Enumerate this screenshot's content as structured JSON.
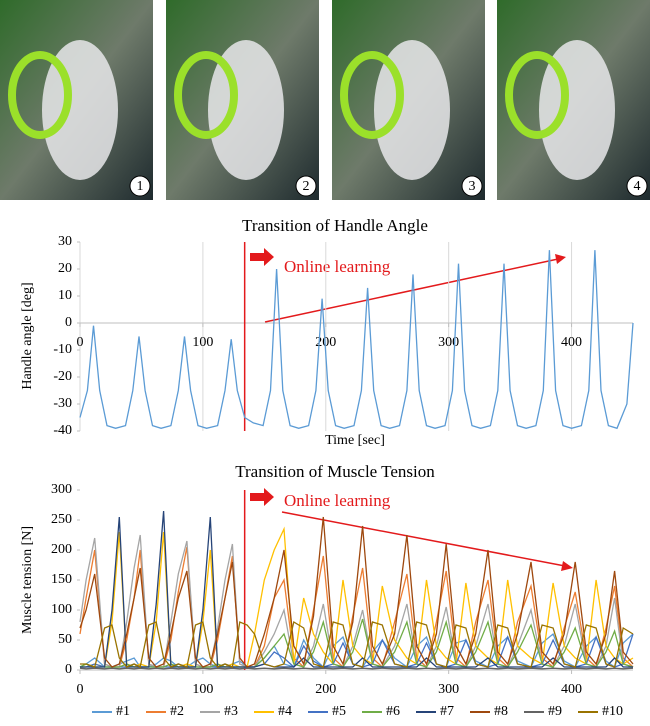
{
  "photos": {
    "labels": [
      "1",
      "2",
      "3",
      "4"
    ]
  },
  "chart_data": [
    {
      "type": "line",
      "title": "Transition of Handle Angle",
      "xlabel": "Time [sec]",
      "ylabel": "Handle angle [deg]",
      "annotation": "Online learning",
      "vline_x": 134,
      "color": "#5b9bd5",
      "line_color": "#e31a1c",
      "xlim": [
        0,
        450
      ],
      "ylim": [
        -40,
        30
      ],
      "xticks": [
        0,
        100,
        200,
        300,
        400
      ],
      "yticks": [
        -40,
        -30,
        -20,
        -10,
        0,
        10,
        20,
        30
      ],
      "xgrid": true,
      "x": [
        0,
        6,
        11,
        16,
        22,
        29,
        37,
        43,
        48,
        53,
        59,
        66,
        74,
        80,
        85,
        90,
        96,
        103,
        112,
        118,
        123,
        128,
        134,
        141,
        149,
        155,
        160,
        165,
        171,
        178,
        186,
        192,
        197,
        202,
        208,
        215,
        223,
        229,
        234,
        239,
        245,
        252,
        260,
        266,
        271,
        276,
        282,
        289,
        297,
        303,
        308,
        313,
        319,
        326,
        334,
        340,
        345,
        350,
        356,
        363,
        371,
        377,
        382,
        387,
        393,
        400,
        408,
        414,
        419,
        424,
        430,
        437,
        445,
        450
      ],
      "values": [
        -35,
        -25,
        -1,
        -25,
        -38,
        -39,
        -38,
        -25,
        -5,
        -25,
        -38,
        -39,
        -38,
        -25,
        -5,
        -25,
        -38,
        -39,
        -38,
        -25,
        -6,
        -25,
        -35,
        -37,
        -38,
        -25,
        20,
        -25,
        -38,
        -39,
        -38,
        -25,
        9,
        -25,
        -38,
        -39,
        -38,
        -25,
        13,
        -25,
        -38,
        -39,
        -38,
        -25,
        18,
        -25,
        -38,
        -39,
        -38,
        -25,
        22,
        -25,
        -38,
        -39,
        -38,
        -25,
        22,
        -25,
        -38,
        -39,
        -38,
        -25,
        27,
        -25,
        -38,
        -39,
        -38,
        -25,
        27,
        -25,
        -38,
        -39,
        -30,
        0
      ]
    },
    {
      "type": "line",
      "title": "Transition of Muscle Tension",
      "ylabel": "Muscle tension [N]",
      "annotation": "Online learning",
      "vline_x": 134,
      "line_color": "#e31a1c",
      "xlim": [
        0,
        450
      ],
      "ylim": [
        0,
        300
      ],
      "xticks": [
        0,
        100,
        200,
        300,
        400
      ],
      "yticks": [
        0,
        50,
        100,
        150,
        200,
        250,
        300
      ],
      "xgrid": false,
      "x": [
        0,
        5,
        12,
        20,
        26,
        32,
        38,
        44,
        49,
        56,
        62,
        68,
        74,
        80,
        87,
        94,
        100,
        106,
        112,
        118,
        124,
        130,
        136,
        142,
        150,
        158,
        166,
        174,
        182,
        190,
        198,
        206,
        214,
        222,
        230,
        238,
        246,
        256,
        266,
        274,
        282,
        290,
        298,
        306,
        314,
        322,
        332,
        340,
        348,
        356,
        367,
        376,
        385,
        394,
        403,
        412,
        420,
        428,
        435,
        442,
        450
      ],
      "series": [
        {
          "name": "#1",
          "color": "#5b9bd5",
          "values": [
            5,
            10,
            20,
            5,
            5,
            10,
            15,
            20,
            5,
            5,
            10,
            20,
            15,
            5,
            5,
            15,
            20,
            10,
            5,
            5,
            10,
            15,
            5,
            5,
            20,
            40,
            10,
            5,
            50,
            20,
            5,
            40,
            55,
            10,
            5,
            30,
            50,
            20,
            5,
            40,
            55,
            10,
            5,
            45,
            50,
            15,
            5,
            40,
            55,
            15,
            5,
            45,
            60,
            15,
            5,
            40,
            55,
            15,
            5,
            45,
            60
          ]
        },
        {
          "name": "#2",
          "color": "#ed7d31",
          "values": [
            60,
            120,
            200,
            10,
            5,
            5,
            50,
            120,
            200,
            10,
            5,
            5,
            50,
            130,
            205,
            10,
            5,
            5,
            50,
            120,
            190,
            10,
            5,
            5,
            40,
            120,
            150,
            20,
            5,
            100,
            190,
            20,
            5,
            90,
            170,
            20,
            5,
            80,
            160,
            20,
            5,
            80,
            165,
            20,
            5,
            80,
            150,
            20,
            5,
            80,
            140,
            20,
            5,
            70,
            130,
            20,
            5,
            70,
            140,
            20,
            5
          ]
        },
        {
          "name": "#3",
          "color": "#a5a5a5",
          "values": [
            80,
            150,
            220,
            10,
            5,
            5,
            80,
            170,
            225,
            10,
            5,
            5,
            80,
            160,
            215,
            10,
            5,
            5,
            70,
            150,
            210,
            10,
            5,
            5,
            30,
            60,
            100,
            10,
            5,
            40,
            110,
            10,
            5,
            40,
            100,
            10,
            5,
            40,
            110,
            10,
            5,
            40,
            105,
            10,
            5,
            40,
            110,
            10,
            5,
            40,
            100,
            10,
            5,
            40,
            110,
            10,
            5,
            40,
            120,
            10,
            5
          ]
        },
        {
          "name": "#4",
          "color": "#ffc000",
          "values": [
            5,
            5,
            10,
            5,
            80,
            230,
            10,
            5,
            10,
            5,
            80,
            230,
            10,
            5,
            10,
            5,
            80,
            200,
            10,
            5,
            10,
            5,
            5,
            60,
            150,
            200,
            235,
            10,
            120,
            60,
            30,
            10,
            150,
            40,
            20,
            10,
            140,
            50,
            20,
            10,
            150,
            40,
            20,
            10,
            145,
            40,
            20,
            10,
            150,
            40,
            20,
            10,
            145,
            40,
            20,
            10,
            150,
            40,
            20,
            10,
            20
          ]
        },
        {
          "name": "#5",
          "color": "#4472c4",
          "values": [
            5,
            5,
            10,
            5,
            5,
            5,
            5,
            10,
            5,
            5,
            5,
            5,
            5,
            10,
            5,
            5,
            5,
            5,
            5,
            10,
            5,
            5,
            5,
            5,
            10,
            30,
            20,
            5,
            40,
            15,
            5,
            10,
            45,
            10,
            5,
            10,
            50,
            10,
            5,
            10,
            45,
            10,
            5,
            10,
            50,
            10,
            5,
            10,
            55,
            10,
            5,
            10,
            50,
            10,
            5,
            10,
            55,
            10,
            5,
            10,
            60
          ]
        },
        {
          "name": "#6",
          "color": "#70ad47",
          "values": [
            5,
            10,
            5,
            5,
            5,
            5,
            10,
            5,
            5,
            5,
            5,
            5,
            10,
            5,
            5,
            5,
            5,
            5,
            10,
            5,
            5,
            5,
            5,
            5,
            20,
            40,
            60,
            10,
            5,
            30,
            80,
            10,
            5,
            30,
            85,
            10,
            5,
            30,
            80,
            10,
            5,
            30,
            80,
            10,
            5,
            30,
            80,
            10,
            5,
            30,
            75,
            10,
            5,
            30,
            70,
            10,
            5,
            30,
            65,
            10,
            5
          ]
        },
        {
          "name": "#7",
          "color": "#264478",
          "values": [
            5,
            5,
            5,
            5,
            100,
            255,
            5,
            5,
            5,
            5,
            110,
            265,
            5,
            5,
            5,
            5,
            100,
            255,
            5,
            5,
            5,
            5,
            5,
            5,
            10,
            5,
            5,
            5,
            20,
            5,
            5,
            5,
            5,
            5,
            20,
            5,
            5,
            5,
            5,
            5,
            20,
            5,
            5,
            5,
            5,
            5,
            20,
            5,
            5,
            5,
            5,
            5,
            20,
            5,
            5,
            5,
            5,
            5,
            20,
            5,
            5
          ]
        },
        {
          "name": "#8",
          "color": "#9e480e",
          "values": [
            70,
            100,
            160,
            20,
            5,
            10,
            60,
            120,
            170,
            20,
            5,
            10,
            60,
            120,
            165,
            20,
            5,
            10,
            60,
            120,
            180,
            20,
            5,
            10,
            60,
            120,
            200,
            40,
            10,
            90,
            255,
            40,
            10,
            80,
            240,
            40,
            10,
            60,
            225,
            40,
            10,
            60,
            210,
            40,
            10,
            60,
            200,
            30,
            10,
            60,
            180,
            30,
            10,
            60,
            180,
            30,
            10,
            60,
            165,
            30,
            10
          ]
        },
        {
          "name": "#9",
          "color": "#636363",
          "values": [
            3,
            2,
            3,
            2,
            3,
            2,
            3,
            2,
            3,
            2,
            3,
            2,
            3,
            2,
            3,
            2,
            3,
            2,
            3,
            2,
            3,
            2,
            3,
            2,
            3,
            2,
            3,
            2,
            3,
            2,
            3,
            2,
            3,
            2,
            3,
            2,
            3,
            2,
            3,
            2,
            3,
            2,
            3,
            2,
            3,
            2,
            3,
            2,
            3,
            2,
            3,
            2,
            3,
            2,
            3,
            2,
            3,
            2,
            3,
            2,
            3
          ]
        },
        {
          "name": "#10",
          "color": "#997300",
          "values": [
            10,
            10,
            5,
            70,
            75,
            20,
            5,
            10,
            5,
            75,
            80,
            20,
            5,
            10,
            5,
            75,
            80,
            20,
            5,
            10,
            5,
            80,
            75,
            60,
            10,
            5,
            10,
            80,
            70,
            10,
            5,
            80,
            75,
            10,
            5,
            80,
            75,
            10,
            5,
            80,
            75,
            10,
            5,
            75,
            70,
            10,
            5,
            75,
            70,
            10,
            5,
            75,
            70,
            10,
            5,
            75,
            70,
            10,
            5,
            70,
            60
          ]
        }
      ]
    }
  ]
}
